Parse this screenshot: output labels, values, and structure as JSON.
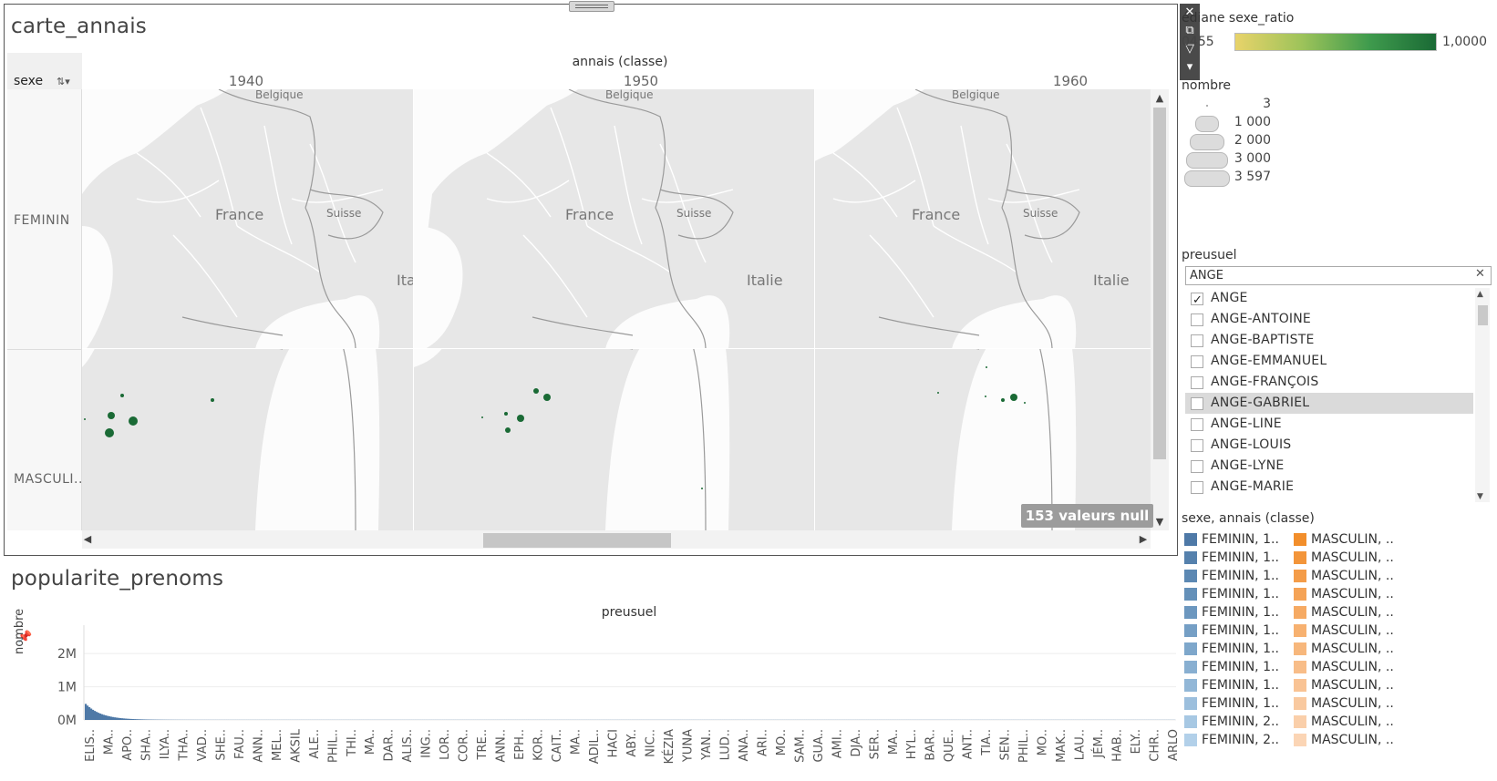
{
  "map_sheet": {
    "title": "carte_annais",
    "column_header": "annais (classe)",
    "row_header": "sexe",
    "columns": [
      "1940",
      "1950",
      "1960"
    ],
    "rows": [
      "FEMININ",
      "MASCULI.."
    ],
    "null_badge": "153 valeurs null",
    "map_labels": {
      "belgique": "Belgique",
      "france": "France",
      "suisse": "Suisse",
      "italie": "Italie"
    },
    "points_color": "#1a6a35"
  },
  "toolbar": {
    "close_icon": "close-icon",
    "popout_icon": "popout-icon",
    "filter_icon": "filter-icon",
    "menu_icon": "menu-icon"
  },
  "legend_ratio": {
    "title": "édiane sexe_ratio",
    "min_label": "0455",
    "max_label": "1,0000",
    "colors": [
      "#e8d36a",
      "#1a6a35"
    ]
  },
  "legend_size": {
    "title": "nombre",
    "entries": [
      "3",
      "1 000",
      "2 000",
      "3 000",
      "3 597"
    ]
  },
  "filter": {
    "title": "preusuel",
    "search_value": "ANGE",
    "items": [
      {
        "label": "ANGE",
        "checked": true
      },
      {
        "label": "ANGE-ANTOINE",
        "checked": false
      },
      {
        "label": "ANGE-BAPTISTE",
        "checked": false
      },
      {
        "label": "ANGE-EMMANUEL",
        "checked": false
      },
      {
        "label": "ANGE-FRANÇOIS",
        "checked": false
      },
      {
        "label": "ANGE-GABRIEL",
        "checked": false
      },
      {
        "label": "ANGE-LINE",
        "checked": false
      },
      {
        "label": "ANGE-LOUIS",
        "checked": false
      },
      {
        "label": "ANGE-LYNE",
        "checked": false
      },
      {
        "label": "ANGE-MARIE",
        "checked": false
      }
    ]
  },
  "legend_color": {
    "title": "sexe, annais (classe)",
    "feminin": [
      "FEMININ, 1..",
      "FEMININ, 1..",
      "FEMININ, 1..",
      "FEMININ, 1..",
      "FEMININ, 1..",
      "FEMININ, 1..",
      "FEMININ, 1..",
      "FEMININ, 1..",
      "FEMININ, 1..",
      "FEMININ, 1..",
      "FEMININ, 2..",
      "FEMININ, 2.."
    ],
    "masculin": [
      "MASCULIN, ..",
      "MASCULIN, ..",
      "MASCULIN, ..",
      "MASCULIN, ..",
      "MASCULIN, ..",
      "MASCULIN, ..",
      "MASCULIN, ..",
      "MASCULIN, ..",
      "MASCULIN, ..",
      "MASCULIN, ..",
      "MASCULIN, ..",
      "MASCULIN, .."
    ],
    "feminin_colors": [
      "#4e79a7",
      "#5581ad",
      "#5c88b3",
      "#6490b9",
      "#6c97bf",
      "#759fc5",
      "#7ea7cb",
      "#88afd1",
      "#92b7d7",
      "#9cbfdd",
      "#a7c8e3",
      "#b2d0e9"
    ],
    "masculin_colors": [
      "#f28e2b",
      "#f3953a",
      "#f49c48",
      "#f5a356",
      "#f6aa63",
      "#f7b170",
      "#f7b77c",
      "#f8bd88",
      "#f9c394",
      "#f9c99f",
      "#facfaa",
      "#fbd5b5"
    ]
  },
  "popularity_chart": {
    "title": "popularite_prenoms",
    "x_header": "preusuel",
    "pin_icon": "pin-icon",
    "chart_data": {
      "type": "bar",
      "xlabel": "preusuel",
      "ylabel": "nombre",
      "y_ticks": [
        "2M",
        "1M",
        "0M"
      ],
      "ylim": [
        0,
        2800000
      ],
      "categories": [
        "ELIS..",
        "MA..",
        "APO..",
        "SHA..",
        "ILYA..",
        "THA..",
        "VAD..",
        "SHE..",
        "FAU..",
        "ANN..",
        "MEL..",
        "AKSIL",
        "ALE..",
        "PHIL..",
        "THI..",
        "MA..",
        "DAR..",
        "ALIS..",
        "ING..",
        "LOR..",
        "COR..",
        "TRE..",
        "ANN..",
        "EPH..",
        "KOR..",
        "CAIT..",
        "MA..",
        "ADIL..",
        "HACI",
        "ABY..",
        "NIC..",
        "KÉZIA",
        "YUNA",
        "YAN..",
        "LUD..",
        "ANA..",
        "ARI..",
        "MO..",
        "SAM..",
        "GUA..",
        "AMI..",
        "DJA..",
        "SER..",
        "MA..",
        "HYL..",
        "BAR..",
        "QUE..",
        "ANT..",
        "TIA..",
        "SEN..",
        "PHIL..",
        "MO..",
        "MAK..",
        "LAU..",
        "JÉM..",
        "HAB..",
        "ELY..",
        "CHR..",
        "ARLO"
      ],
      "values": [
        480000,
        300000,
        200000,
        140000,
        100000,
        75000,
        60000,
        50000,
        42000,
        36000,
        31000,
        27000,
        24000,
        21000,
        19000,
        17000,
        15500,
        14000,
        13000,
        12000,
        11000,
        10200,
        9500,
        8800,
        8200,
        7600,
        7100,
        6600,
        6200,
        5800,
        5400,
        5100,
        4800,
        4500,
        4200,
        4000,
        3700,
        3500,
        3300,
        3100,
        2900,
        2700,
        2500,
        2400,
        2200,
        2100,
        2000,
        1900,
        1800,
        1700,
        1600,
        1500,
        1400,
        1300,
        1200,
        1100,
        1000,
        950,
        900
      ]
    }
  }
}
